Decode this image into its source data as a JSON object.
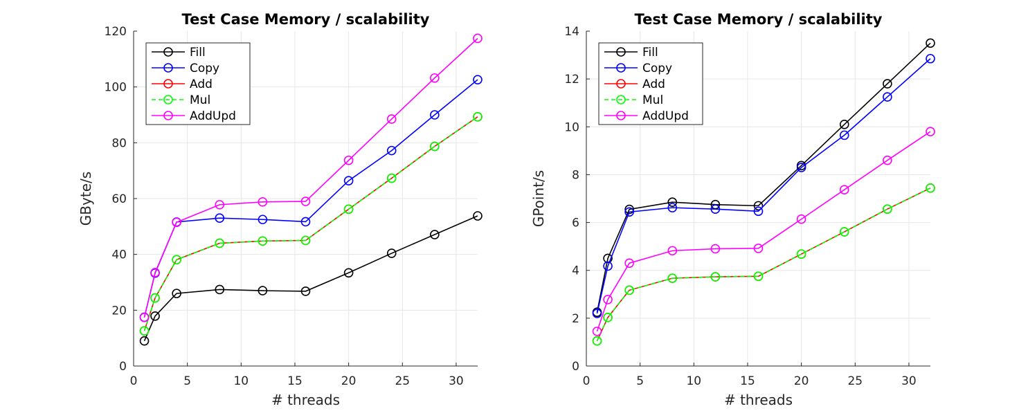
{
  "chart_data": [
    {
      "type": "line",
      "title": "Test Case Memory / scalability",
      "xlabel": "# threads",
      "ylabel": "GByte/s",
      "xlim": [
        0,
        32
      ],
      "ylim": [
        0,
        120
      ],
      "xticks": [
        0,
        5,
        10,
        15,
        20,
        25,
        30
      ],
      "yticks": [
        0,
        20,
        40,
        60,
        80,
        100,
        120
      ],
      "grid": true,
      "legend_position": "top-left",
      "x": [
        1,
        2,
        4,
        8,
        12,
        16,
        20,
        24,
        28,
        32
      ],
      "series": [
        {
          "name": "Fill",
          "color": "#000000",
          "dash": "solid",
          "values": [
            9.0,
            17.9,
            26.0,
            27.4,
            27.0,
            26.8,
            33.4,
            40.4,
            47.1,
            53.8
          ]
        },
        {
          "name": "Copy",
          "color": "#0000ff",
          "dash": "solid",
          "values": [
            17.5,
            33.3,
            51.6,
            53.0,
            52.5,
            51.7,
            66.4,
            77.2,
            90.0,
            102.6
          ]
        },
        {
          "name": "Add",
          "color": "#ff0000",
          "dash": "solid",
          "values": [
            12.6,
            24.4,
            38.1,
            44.0,
            44.8,
            45.0,
            56.2,
            67.3,
            78.7,
            89.3
          ]
        },
        {
          "name": "Mul",
          "color": "#00ff00",
          "dash": "dashed",
          "values": [
            12.6,
            24.4,
            38.1,
            44.0,
            44.8,
            45.0,
            56.2,
            67.3,
            78.7,
            89.3
          ]
        },
        {
          "name": "AddUpd",
          "color": "#ff00ff",
          "dash": "solid",
          "values": [
            17.4,
            33.5,
            51.5,
            57.8,
            58.8,
            59.0,
            73.7,
            88.5,
            103.2,
            117.4
          ]
        }
      ]
    },
    {
      "type": "line",
      "title": "Test Case Memory / scalability",
      "xlabel": "# threads",
      "ylabel": "GPoint/s",
      "xlim": [
        0,
        32
      ],
      "ylim": [
        0,
        14
      ],
      "xticks": [
        0,
        5,
        10,
        15,
        20,
        25,
        30
      ],
      "yticks": [
        0,
        2,
        4,
        6,
        8,
        10,
        12,
        14
      ],
      "grid": true,
      "legend_position": "top-left",
      "x": [
        1,
        2,
        4,
        8,
        12,
        16,
        20,
        24,
        28,
        32
      ],
      "series": [
        {
          "name": "Fill",
          "color": "#000000",
          "dash": "solid",
          "values": [
            2.25,
            4.5,
            6.55,
            6.85,
            6.75,
            6.7,
            8.38,
            10.1,
            11.8,
            13.5
          ]
        },
        {
          "name": "Copy",
          "color": "#0000ff",
          "dash": "solid",
          "values": [
            2.2,
            4.18,
            6.44,
            6.62,
            6.56,
            6.47,
            8.3,
            9.65,
            11.25,
            12.85
          ]
        },
        {
          "name": "Add",
          "color": "#ff0000",
          "dash": "solid",
          "values": [
            1.05,
            2.03,
            3.17,
            3.67,
            3.73,
            3.75,
            4.68,
            5.61,
            6.56,
            7.44
          ]
        },
        {
          "name": "Mul",
          "color": "#00ff00",
          "dash": "dashed",
          "values": [
            1.05,
            2.03,
            3.17,
            3.67,
            3.73,
            3.75,
            4.68,
            5.61,
            6.56,
            7.44
          ]
        },
        {
          "name": "AddUpd",
          "color": "#ff00ff",
          "dash": "solid",
          "values": [
            1.45,
            2.78,
            4.3,
            4.82,
            4.9,
            4.92,
            6.14,
            7.37,
            8.6,
            9.8
          ]
        }
      ]
    }
  ]
}
